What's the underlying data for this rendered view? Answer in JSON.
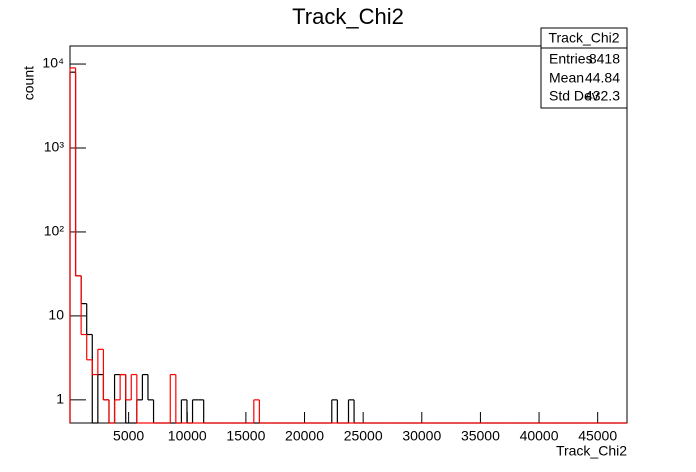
{
  "chart_data": {
    "type": "histogram",
    "title": "Track_Chi2",
    "x_label": "Track_Chi2",
    "y_label": "count",
    "logy": true,
    "xlim": [
      0,
      47500
    ],
    "ylim": [
      0.53,
      16400
    ],
    "xticks": [
      5000,
      10000,
      15000,
      20000,
      25000,
      30000,
      35000,
      40000,
      45000
    ],
    "yticks": [
      1,
      10,
      {
        "value": 100,
        "label": "10²"
      },
      {
        "value": 1000,
        "label": "10³"
      },
      {
        "value": 10000,
        "label": "10⁴"
      }
    ],
    "bins": [
      0,
      475,
      950,
      1425,
      1900,
      2375,
      2850,
      3325,
      3800,
      4275,
      4750,
      5225,
      5700,
      6175,
      6650,
      7125,
      7600,
      8075,
      8550,
      9025,
      9500,
      9975,
      10450,
      10925,
      11400,
      11875,
      12350,
      12825,
      13300,
      13775,
      14250,
      14725,
      15200,
      15675,
      16150,
      16625,
      17100,
      17575,
      18050,
      18525,
      19000,
      19475,
      19950,
      20425,
      20900,
      21375,
      21850,
      22325,
      22800,
      23275,
      23750,
      24225,
      24700,
      25175,
      25650,
      26125,
      26600,
      27075,
      27550,
      28025,
      28500,
      28975,
      29450,
      29925,
      30400,
      30875,
      31350,
      31825,
      32300,
      32775,
      33250,
      33725,
      34200,
      34675,
      35150,
      35625,
      36100,
      36575,
      37050,
      37525,
      38000,
      38475,
      38950,
      39425,
      39900,
      40375,
      40850,
      41325,
      41800,
      42275,
      42750,
      43225,
      43700,
      44175,
      44650,
      45125,
      45600,
      46075,
      46550,
      47025,
      47500
    ],
    "series": [
      {
        "color": "#000000",
        "values": [
          8000,
          30,
          14,
          6,
          0,
          2,
          1,
          0,
          2,
          2,
          0,
          0,
          1,
          2,
          1,
          0,
          0,
          0,
          0,
          0,
          1,
          0,
          1,
          1,
          0,
          0,
          0,
          0,
          0,
          0,
          0,
          0,
          0,
          0,
          0,
          0,
          0,
          0,
          0,
          0,
          0,
          0,
          0,
          0,
          0,
          0,
          0,
          1,
          0,
          0,
          1,
          0,
          0,
          0,
          0,
          0,
          0,
          0,
          0,
          0,
          0,
          0,
          0,
          0,
          0,
          0,
          0,
          0,
          0,
          0,
          0,
          0,
          0,
          0,
          0,
          0,
          0,
          0,
          0,
          0,
          0,
          0,
          0,
          0,
          0,
          0,
          0,
          0,
          0,
          0,
          0,
          0,
          0,
          0,
          0,
          0,
          0,
          0,
          0,
          0
        ]
      },
      {
        "color": "#ff0000",
        "values": [
          9000,
          30,
          6,
          3,
          2,
          4,
          1,
          0,
          1,
          2,
          1,
          2,
          0,
          0,
          0,
          0,
          0,
          0,
          2,
          0,
          0,
          0,
          0,
          0,
          0,
          0,
          0,
          0,
          0,
          0,
          0,
          0,
          0,
          1,
          0,
          0,
          0,
          0,
          0,
          0,
          0,
          0,
          0,
          0,
          0,
          0,
          0,
          0,
          0,
          0,
          0,
          0,
          0,
          0,
          0,
          0,
          0,
          0,
          0,
          0,
          0,
          0,
          0,
          0,
          0,
          0,
          0,
          0,
          0,
          0,
          0,
          0,
          0,
          0,
          0,
          0,
          0,
          0,
          0,
          0,
          0,
          0,
          0,
          0,
          0,
          0,
          0,
          0,
          0,
          0,
          0,
          0,
          0,
          0,
          0,
          0,
          0,
          0,
          0,
          0
        ]
      }
    ],
    "stats_box": {
      "title": "Track_Chi2",
      "rows": [
        [
          "Entries",
          "8418"
        ],
        [
          "Mean",
          "44.84"
        ],
        [
          "Std Dev",
          "432.3"
        ]
      ]
    }
  }
}
